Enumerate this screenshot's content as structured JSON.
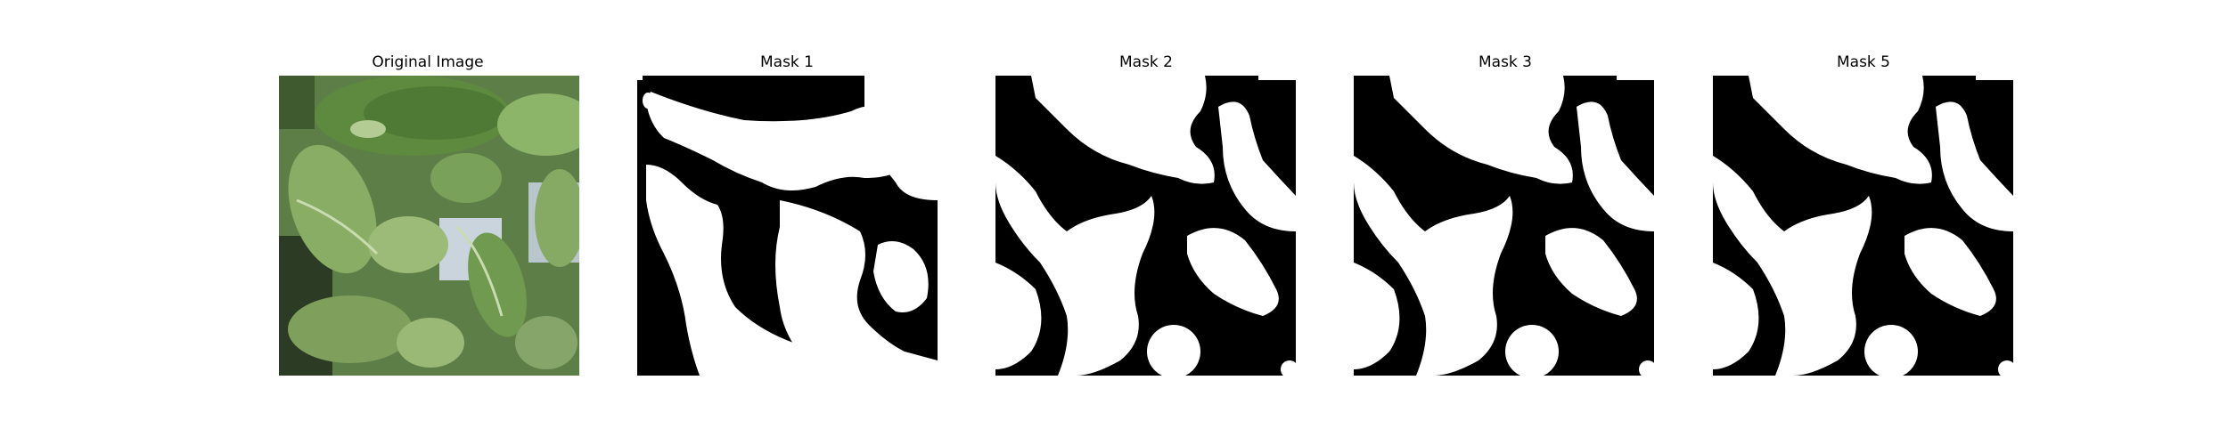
{
  "figure": {
    "panels": [
      {
        "id": "original",
        "title": "Original Image"
      },
      {
        "id": "mask1",
        "title": "Mask 1"
      },
      {
        "id": "mask2",
        "title": "Mask 2"
      },
      {
        "id": "mask3",
        "title": "Mask 3"
      },
      {
        "id": "mask5",
        "title": "Mask 5"
      }
    ],
    "colors": {
      "background": "#ffffff",
      "mask_foreground": "#ffffff",
      "mask_background": "#000000",
      "leaf_green": "#6f9a4f"
    }
  }
}
